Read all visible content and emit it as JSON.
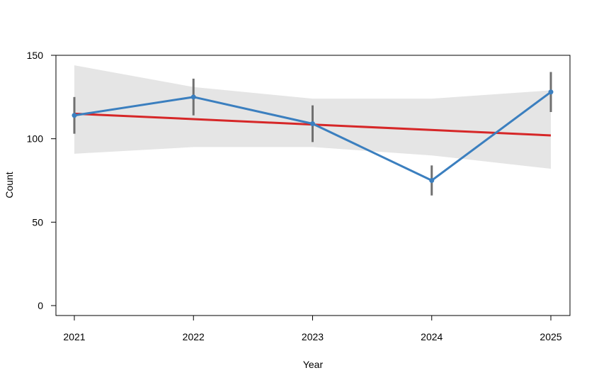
{
  "chart_data": {
    "type": "line",
    "xlabel": "Year",
    "ylabel": "Count",
    "x": [
      2021,
      2022,
      2023,
      2024,
      2025
    ],
    "x_ticks": [
      "2021",
      "2022",
      "2023",
      "2024",
      "2025"
    ],
    "y_ticks": [
      "0",
      "50",
      "100",
      "150"
    ],
    "ylim": [
      -6,
      150
    ],
    "grid": false,
    "series": [
      {
        "color": "#3b7fbf",
        "values": [
          114,
          125,
          109,
          75,
          128
        ],
        "error_low": [
          103,
          114,
          98,
          66,
          116
        ],
        "error_high": [
          125,
          136,
          120,
          84,
          140
        ]
      }
    ],
    "trend": {
      "color": "#d62728",
      "start": 115,
      "end": 102,
      "band_low": [
        91,
        95,
        95,
        90,
        82
      ],
      "band_high": [
        144,
        131,
        124,
        124,
        129
      ],
      "band_color": "#e5e5e5"
    },
    "error_bar_color": "#707070"
  }
}
